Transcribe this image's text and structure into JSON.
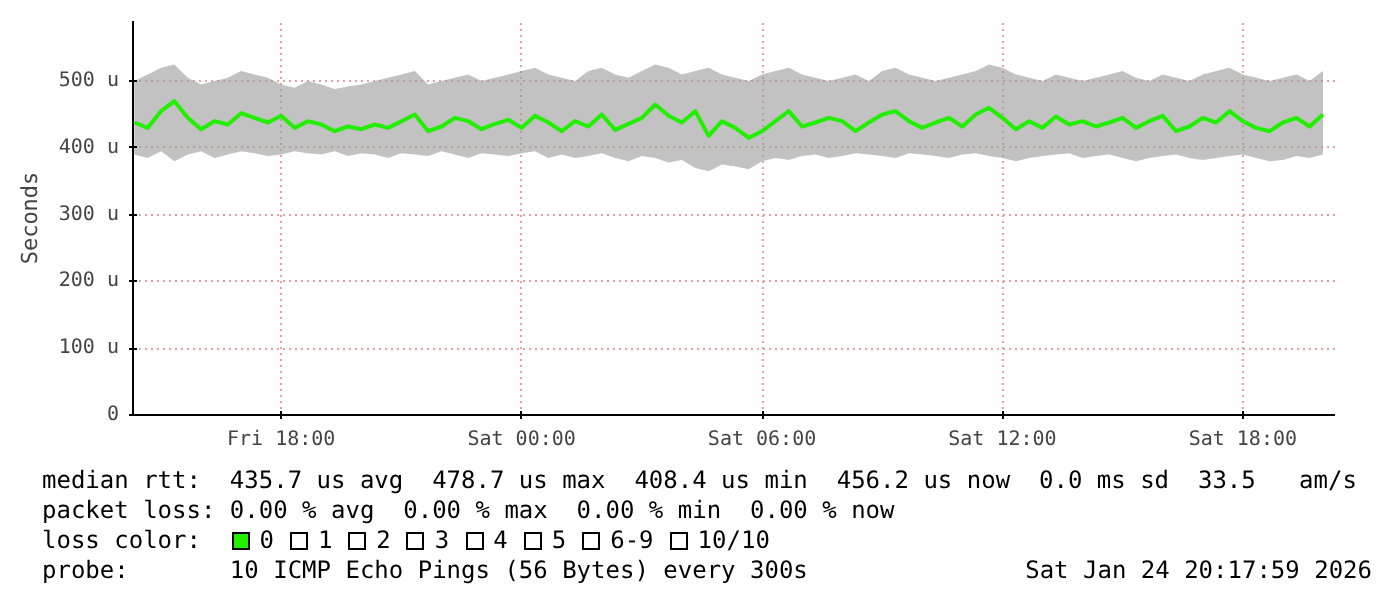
{
  "chart_data": {
    "type": "line",
    "ylabel": "Seconds",
    "xlim": [
      "2026-01-23T14:18",
      "2026-01-24T20:18"
    ],
    "xticks": [
      {
        "value": "2026-01-23T18:00",
        "label": "Fri 18:00"
      },
      {
        "value": "2026-01-24T00:00",
        "label": "Sat 00:00"
      },
      {
        "value": "2026-01-24T06:00",
        "label": "Sat 06:00"
      },
      {
        "value": "2026-01-24T12:00",
        "label": "Sat 12:00"
      },
      {
        "value": "2026-01-24T18:00",
        "label": "Sat 18:00"
      }
    ],
    "ylim": [
      0,
      590
    ],
    "yticks": [
      {
        "value": 0,
        "label": "0"
      },
      {
        "value": 100,
        "label": "100 u"
      },
      {
        "value": 200,
        "label": "200 u"
      },
      {
        "value": 300,
        "label": "300 u"
      },
      {
        "value": 400,
        "label": "400 u"
      },
      {
        "value": 500,
        "label": "500 u"
      }
    ],
    "grid": true,
    "line_style": "solid",
    "marker": "none",
    "x": [
      "2026-01-23T14:20",
      "2026-01-23T14:40",
      "2026-01-23T15:00",
      "2026-01-23T15:20",
      "2026-01-23T15:40",
      "2026-01-23T16:00",
      "2026-01-23T16:20",
      "2026-01-23T16:40",
      "2026-01-23T17:00",
      "2026-01-23T17:20",
      "2026-01-23T17:40",
      "2026-01-23T18:00",
      "2026-01-23T18:20",
      "2026-01-23T18:40",
      "2026-01-23T19:00",
      "2026-01-23T19:20",
      "2026-01-23T19:40",
      "2026-01-23T20:00",
      "2026-01-23T20:20",
      "2026-01-23T20:40",
      "2026-01-23T21:00",
      "2026-01-23T21:20",
      "2026-01-23T21:40",
      "2026-01-23T22:00",
      "2026-01-23T22:20",
      "2026-01-23T22:40",
      "2026-01-23T23:00",
      "2026-01-23T23:20",
      "2026-01-23T23:40",
      "2026-01-24T00:00",
      "2026-01-24T00:20",
      "2026-01-24T00:40",
      "2026-01-24T01:00",
      "2026-01-24T01:20",
      "2026-01-24T01:40",
      "2026-01-24T02:00",
      "2026-01-24T02:20",
      "2026-01-24T02:40",
      "2026-01-24T03:00",
      "2026-01-24T03:20",
      "2026-01-24T03:40",
      "2026-01-24T04:00",
      "2026-01-24T04:20",
      "2026-01-24T04:40",
      "2026-01-24T05:00",
      "2026-01-24T05:20",
      "2026-01-24T05:40",
      "2026-01-24T06:00",
      "2026-01-24T06:20",
      "2026-01-24T06:40",
      "2026-01-24T07:00",
      "2026-01-24T07:20",
      "2026-01-24T07:40",
      "2026-01-24T08:00",
      "2026-01-24T08:20",
      "2026-01-24T08:40",
      "2026-01-24T09:00",
      "2026-01-24T09:20",
      "2026-01-24T09:40",
      "2026-01-24T10:00",
      "2026-01-24T10:20",
      "2026-01-24T10:40",
      "2026-01-24T11:00",
      "2026-01-24T11:20",
      "2026-01-24T11:40",
      "2026-01-24T12:00",
      "2026-01-24T12:20",
      "2026-01-24T12:40",
      "2026-01-24T13:00",
      "2026-01-24T13:20",
      "2026-01-24T13:40",
      "2026-01-24T14:00",
      "2026-01-24T14:20",
      "2026-01-24T14:40",
      "2026-01-24T15:00",
      "2026-01-24T15:20",
      "2026-01-24T15:40",
      "2026-01-24T16:00",
      "2026-01-24T16:20",
      "2026-01-24T16:40",
      "2026-01-24T17:00",
      "2026-01-24T17:20",
      "2026-01-24T17:40",
      "2026-01-24T18:00",
      "2026-01-24T18:20",
      "2026-01-24T18:40",
      "2026-01-24T19:00",
      "2026-01-24T19:20",
      "2026-01-24T19:40",
      "2026-01-24T20:00"
    ],
    "series": [
      {
        "color": "#22ee00",
        "values": [
          438,
          430,
          455,
          470,
          445,
          428,
          440,
          435,
          452,
          445,
          438,
          448,
          430,
          440,
          435,
          425,
          432,
          428,
          435,
          430,
          440,
          450,
          425,
          432,
          445,
          440,
          428,
          436,
          442,
          430,
          448,
          438,
          425,
          440,
          432,
          450,
          427,
          436,
          445,
          465,
          448,
          438,
          455,
          418,
          440,
          430,
          415,
          425,
          440,
          455,
          432,
          438,
          445,
          440,
          425,
          438,
          450,
          455,
          440,
          430,
          438,
          445,
          432,
          450,
          460,
          445,
          428,
          440,
          430,
          447,
          435,
          440,
          432,
          438,
          445,
          430,
          440,
          448,
          425,
          432,
          445,
          438,
          455,
          440,
          430,
          425,
          438,
          445,
          432,
          450
        ],
        "lower": [
          390,
          385,
          395,
          380,
          390,
          395,
          385,
          390,
          395,
          392,
          388,
          390,
          395,
          392,
          390,
          395,
          388,
          392,
          390,
          385,
          392,
          390,
          388,
          395,
          390,
          385,
          392,
          390,
          388,
          392,
          395,
          385,
          390,
          385,
          388,
          392,
          385,
          380,
          388,
          385,
          378,
          382,
          370,
          365,
          375,
          372,
          368,
          380,
          385,
          382,
          388,
          390,
          385,
          388,
          392,
          390,
          388,
          385,
          392,
          390,
          388,
          385,
          390,
          392,
          388,
          385,
          380,
          385,
          388,
          390,
          392,
          385,
          388,
          390,
          385,
          380,
          385,
          388,
          390,
          385,
          382,
          385,
          388,
          390,
          385,
          380,
          382,
          388,
          385,
          390
        ],
        "upper": [
          500,
          510,
          520,
          525,
          505,
          495,
          500,
          505,
          515,
          510,
          505,
          495,
          490,
          500,
          495,
          488,
          492,
          495,
          500,
          505,
          510,
          515,
          495,
          500,
          505,
          510,
          500,
          505,
          510,
          515,
          520,
          510,
          505,
          500,
          515,
          520,
          510,
          505,
          515,
          525,
          520,
          510,
          515,
          520,
          510,
          505,
          500,
          510,
          515,
          520,
          510,
          505,
          500,
          505,
          510,
          500,
          515,
          520,
          510,
          505,
          500,
          505,
          510,
          515,
          525,
          520,
          510,
          505,
          500,
          510,
          505,
          500,
          505,
          510,
          515,
          505,
          500,
          510,
          505,
          500,
          510,
          515,
          520,
          510,
          505,
          500,
          505,
          510,
          500,
          515
        ]
      }
    ],
    "annotations": [
      "median rtt:  435.7 us avg  478.7 us max  408.4 us min  456.2 us now  0.0 ms sd  33.5   am/s",
      "packet loss: 0.00 % avg  0.00 % max  0.00 % min  0.00 % now",
      "loss color:",
      "0",
      "1",
      "2",
      "3",
      "4",
      "5",
      "6-9",
      "10/10",
      "probe:       10 ICMP Echo Pings (56 Bytes) every 300s",
      "Sat Jan 24 20:17:59 2026"
    ]
  }
}
